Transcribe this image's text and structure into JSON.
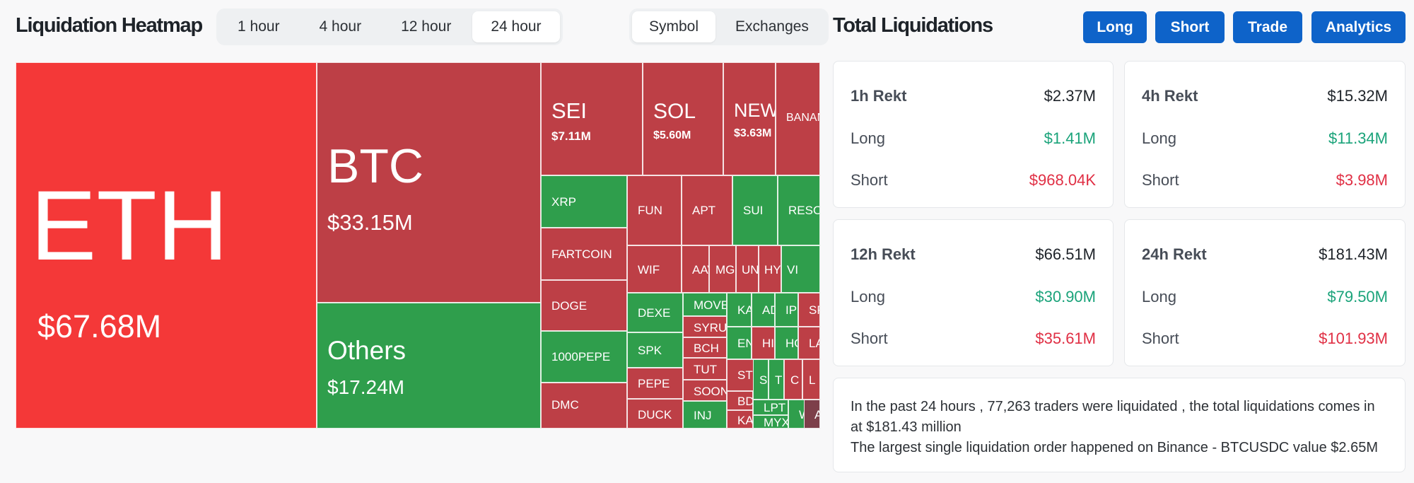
{
  "heatmap": {
    "title": "Liquidation Heatmap",
    "time_tabs": [
      "1 hour",
      "4 hour",
      "12 hour",
      "24 hour"
    ],
    "active_time_tab": "24 hour",
    "view_tabs": [
      "Symbol",
      "Exchanges"
    ],
    "active_view_tab": "Symbol",
    "tiles": [
      {
        "symbol": "ETH",
        "value": "$67.68M"
      },
      {
        "symbol": "BTC",
        "value": "$33.15M"
      },
      {
        "symbol": "Others",
        "value": "$17.24M"
      },
      {
        "symbol": "SEI",
        "value": "$7.11M"
      },
      {
        "symbol": "SOL",
        "value": "$5.60M"
      },
      {
        "symbol": "NEW",
        "value": "$3.63M"
      },
      {
        "symbol": "BANAN"
      },
      {
        "symbol": "XRP"
      },
      {
        "symbol": "FARTCOIN"
      },
      {
        "symbol": "DOGE"
      },
      {
        "symbol": "1000PEPE"
      },
      {
        "symbol": "DMC"
      },
      {
        "symbol": "FUN"
      },
      {
        "symbol": "APT"
      },
      {
        "symbol": "SUI"
      },
      {
        "symbol": "RESO"
      },
      {
        "symbol": "WIF"
      },
      {
        "symbol": "AAV"
      },
      {
        "symbol": "MG"
      },
      {
        "symbol": "UN"
      },
      {
        "symbol": "HY"
      },
      {
        "symbol": "VI"
      },
      {
        "symbol": "DEXE"
      },
      {
        "symbol": "SPK"
      },
      {
        "symbol": "PEPE"
      },
      {
        "symbol": "DUCK"
      },
      {
        "symbol": "MOVE"
      },
      {
        "symbol": "SYRU"
      },
      {
        "symbol": "BCH"
      },
      {
        "symbol": "TUT"
      },
      {
        "symbol": "SOON"
      },
      {
        "symbol": "INJ"
      },
      {
        "symbol": "KA"
      },
      {
        "symbol": "AD"
      },
      {
        "symbol": "IP"
      },
      {
        "symbol": "SF"
      },
      {
        "symbol": "EN"
      },
      {
        "symbol": "HI"
      },
      {
        "symbol": "HO"
      },
      {
        "symbol": "LA"
      },
      {
        "symbol": "STX"
      },
      {
        "symbol": "S"
      },
      {
        "symbol": "T"
      },
      {
        "symbol": "C"
      },
      {
        "symbol": "L"
      },
      {
        "symbol": "BD"
      },
      {
        "symbol": "LPT"
      },
      {
        "symbol": "KA"
      },
      {
        "symbol": "MYX"
      },
      {
        "symbol": "W"
      },
      {
        "symbol": "A"
      }
    ]
  },
  "total": {
    "title": "Total Liquidations",
    "buttons": [
      "Long",
      "Short",
      "Trade",
      "Analytics"
    ],
    "cards": [
      {
        "period": "1h Rekt",
        "total": "$2.37M",
        "long_label": "Long",
        "long": "$1.41M",
        "short_label": "Short",
        "short": "$968.04K"
      },
      {
        "period": "4h Rekt",
        "total": "$15.32M",
        "long_label": "Long",
        "long": "$11.34M",
        "short_label": "Short",
        "short": "$3.98M"
      },
      {
        "period": "12h Rekt",
        "total": "$66.51M",
        "long_label": "Long",
        "long": "$30.90M",
        "short_label": "Short",
        "short": "$35.61M"
      },
      {
        "period": "24h Rekt",
        "total": "$181.43M",
        "long_label": "Long",
        "long": "$79.50M",
        "short_label": "Short",
        "short": "$101.93M"
      }
    ],
    "summary_line1": "In the past 24 hours , 77,263 traders were liquidated , the total liquidations comes in at $181.43 million",
    "summary_line2": "The largest single liquidation order happened on Binance - BTCUSDC value $2.65M"
  },
  "colors": {
    "accent": "#0e63c9",
    "tile_red": "#bd3f46",
    "tile_bright_red": "#f43838",
    "tile_green": "#2f9e4c",
    "positive": "#1aa37a",
    "negative": "#e02f44"
  }
}
